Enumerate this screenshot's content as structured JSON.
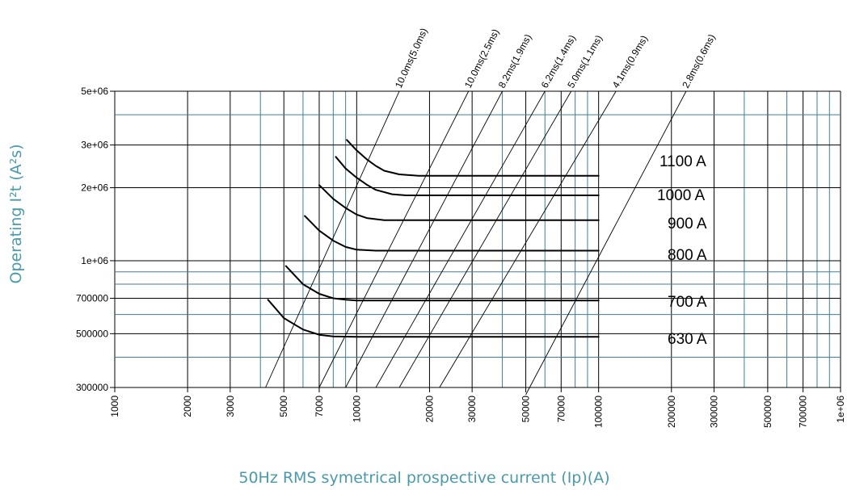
{
  "chart_data": {
    "type": "line",
    "title": "",
    "xlabel": "50Hz RMS symetrical prospective current (Ip)(A)",
    "ylabel": "Operating I²t (A²s)",
    "xscale": "log",
    "yscale": "log",
    "xlim": [
      1000,
      1000000
    ],
    "ylim": [
      300000,
      5000000
    ],
    "grid": true,
    "x_ticks": [
      {
        "value": 1000,
        "label": "1000"
      },
      {
        "value": 2000,
        "label": "2000"
      },
      {
        "value": 3000,
        "label": "3000"
      },
      {
        "value": 5000,
        "label": "5000"
      },
      {
        "value": 7000,
        "label": "7000"
      },
      {
        "value": 10000,
        "label": "10000"
      },
      {
        "value": 20000,
        "label": "20000"
      },
      {
        "value": 30000,
        "label": "30000"
      },
      {
        "value": 50000,
        "label": "50000"
      },
      {
        "value": 70000,
        "label": "70000"
      },
      {
        "value": 100000,
        "label": "100000"
      },
      {
        "value": 200000,
        "label": "200000"
      },
      {
        "value": 300000,
        "label": "300000"
      },
      {
        "value": 500000,
        "label": "500000"
      },
      {
        "value": 700000,
        "label": "700000"
      },
      {
        "value": 1000000,
        "label": "1e+06"
      }
    ],
    "y_ticks": [
      {
        "value": 300000,
        "label": "300000"
      },
      {
        "value": 500000,
        "label": "500000"
      },
      {
        "value": 700000,
        "label": "700000"
      },
      {
        "value": 1000000,
        "label": "1e+06"
      },
      {
        "value": 2000000,
        "label": "2e+06"
      },
      {
        "value": 3000000,
        "label": "3e+06"
      },
      {
        "value": 5000000,
        "label": "5e+06"
      }
    ],
    "colors": {
      "primary_grid": "#000000",
      "secondary_grid": "#3f7f95",
      "axis_title": "#4a9aab",
      "curve": "#000000"
    },
    "series": [
      {
        "name": "630 A",
        "points": [
          [
            4300,
            690000
          ],
          [
            5000,
            580000
          ],
          [
            6000,
            520000
          ],
          [
            7000,
            495000
          ],
          [
            8000,
            487000
          ],
          [
            10000,
            485000
          ],
          [
            100000,
            485000
          ]
        ]
      },
      {
        "name": "700 A",
        "points": [
          [
            5100,
            950000
          ],
          [
            6000,
            800000
          ],
          [
            7000,
            730000
          ],
          [
            8000,
            700000
          ],
          [
            9000,
            690000
          ],
          [
            10000,
            685000
          ],
          [
            100000,
            685000
          ]
        ]
      },
      {
        "name": "800 A",
        "points": [
          [
            6100,
            1530000
          ],
          [
            7000,
            1330000
          ],
          [
            8000,
            1210000
          ],
          [
            9000,
            1140000
          ],
          [
            10000,
            1110000
          ],
          [
            12000,
            1100000
          ],
          [
            100000,
            1100000
          ]
        ]
      },
      {
        "name": "900 A",
        "points": [
          [
            7000,
            2050000
          ],
          [
            8000,
            1800000
          ],
          [
            9000,
            1650000
          ],
          [
            10000,
            1550000
          ],
          [
            11000,
            1500000
          ],
          [
            13000,
            1470000
          ],
          [
            100000,
            1470000
          ]
        ]
      },
      {
        "name": "1000 A",
        "points": [
          [
            8200,
            2680000
          ],
          [
            9000,
            2400000
          ],
          [
            10000,
            2200000
          ],
          [
            11000,
            2060000
          ],
          [
            12000,
            1960000
          ],
          [
            14000,
            1880000
          ],
          [
            16000,
            1860000
          ],
          [
            100000,
            1860000
          ]
        ]
      },
      {
        "name": "1100 A",
        "points": [
          [
            9100,
            3150000
          ],
          [
            10000,
            2850000
          ],
          [
            11000,
            2620000
          ],
          [
            12000,
            2460000
          ],
          [
            13000,
            2350000
          ],
          [
            15000,
            2270000
          ],
          [
            18000,
            2240000
          ],
          [
            100000,
            2240000
          ]
        ]
      }
    ],
    "series_labels": [
      "1100 A",
      "1000 A",
      "900 A",
      "800 A",
      "700 A",
      "630 A"
    ],
    "diagonal_lines": [
      {
        "label": "10.0ms(5.0ms)",
        "points": [
          [
            4200,
            300000
          ],
          [
            15000,
            5000000
          ]
        ]
      },
      {
        "label": "10.0ms(2.5ms)",
        "points": [
          [
            7000,
            300000
          ],
          [
            29000,
            5000000
          ]
        ]
      },
      {
        "label": "8.2ms(1.9ms)",
        "points": [
          [
            9000,
            300000
          ],
          [
            40000,
            5000000
          ]
        ]
      },
      {
        "label": "6.2ms(1.4ms)",
        "points": [
          [
            12000,
            300000
          ],
          [
            60000,
            5000000
          ]
        ]
      },
      {
        "label": "5.0ms(1.1ms)",
        "points": [
          [
            15000,
            300000
          ],
          [
            77000,
            5000000
          ]
        ]
      },
      {
        "label": "4.1ms(0.9ms)",
        "points": [
          [
            22000,
            300000
          ],
          [
            118000,
            5000000
          ]
        ]
      },
      {
        "label": "2.8ms(0.6ms)",
        "points": [
          [
            50000,
            280000
          ],
          [
            230000,
            5000000
          ]
        ]
      }
    ]
  }
}
